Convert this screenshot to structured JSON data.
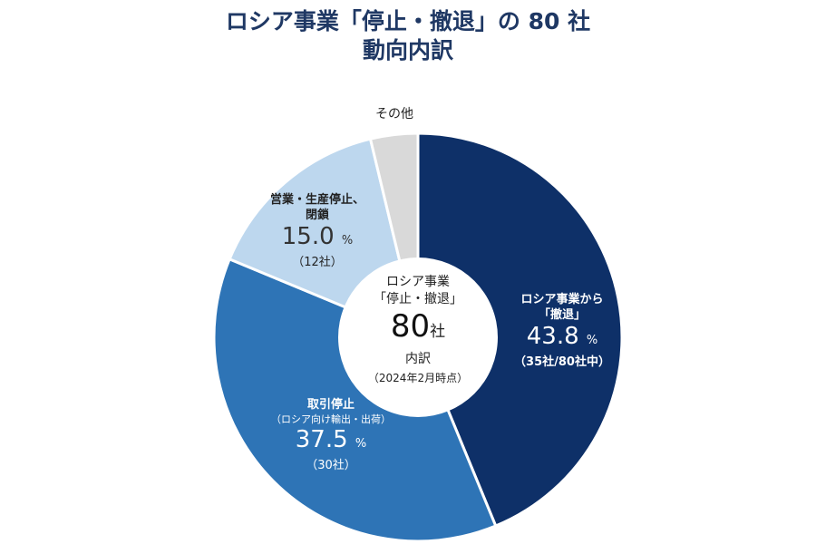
{
  "chart_data": {
    "type": "pie",
    "title_line1": "ロシア事業「停止・撤退」の 80 社",
    "title_line2": "動向内訳",
    "center": {
      "line1": "ロシア事業",
      "line2": "「停止・撤退」",
      "count": "80",
      "count_unit": "社",
      "line3": "内訳",
      "date": "（2024年2月時点）"
    },
    "slices": [
      {
        "name": "ロシア事業から「撤退」",
        "label_line1": "ロシア事業から",
        "label_line2": "「撤退」",
        "value": 43.8,
        "pct_text": "43.8",
        "count_text": "（35社/80社中）",
        "color": "#0e3068"
      },
      {
        "name": "取引停止",
        "label_line1": "取引停止",
        "label_line2": "（ロシア向け輸出・出荷）",
        "value": 37.5,
        "pct_text": "37.5",
        "count_text": "（30社）",
        "color": "#2e74b6"
      },
      {
        "name": "営業・生産停止、閉鎖",
        "label_line1": "営業・生産停止、",
        "label_line2": "閉鎖",
        "value": 15.0,
        "pct_text": "15.0",
        "count_text": "（12社）",
        "color": "#bdd7ee"
      },
      {
        "name": "その他",
        "label_line1": "その他",
        "value": 3.75,
        "color": "#d9d9d9"
      }
    ],
    "percent_sign": "%"
  }
}
